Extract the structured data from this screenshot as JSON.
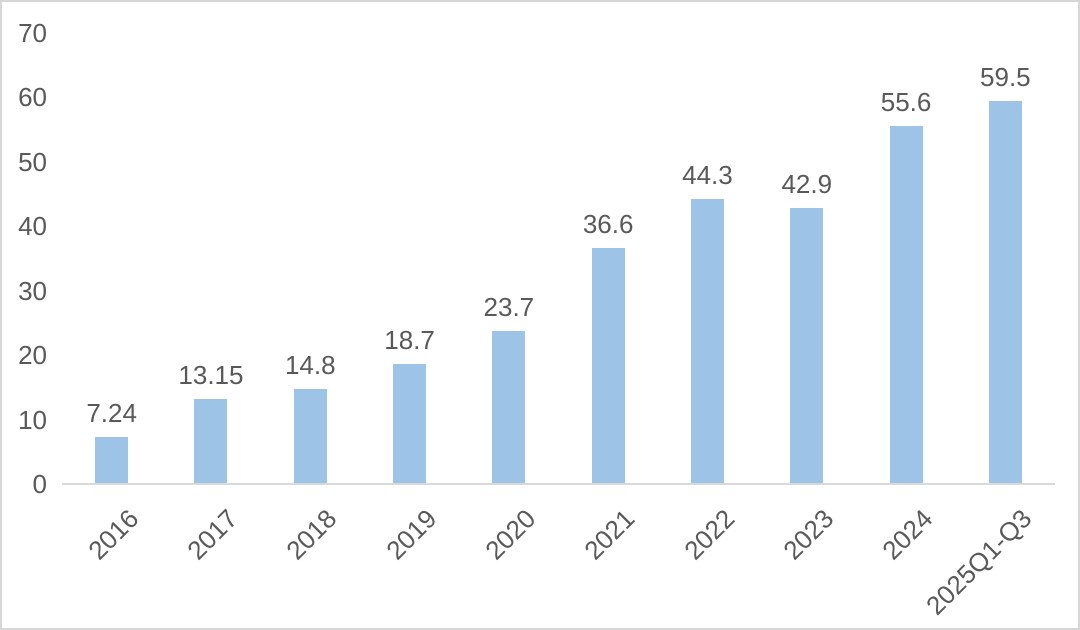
{
  "chart_data": {
    "type": "bar",
    "title": "",
    "xlabel": "",
    "ylabel": "",
    "categories": [
      "2016",
      "2017",
      "2018",
      "2019",
      "2020",
      "2021",
      "2022",
      "2023",
      "2024",
      "2025Q1-Q3"
    ],
    "values": [
      7.24,
      13.15,
      14.8,
      18.7,
      23.7,
      36.6,
      44.3,
      42.9,
      55.6,
      59.5
    ],
    "value_labels": [
      "7.24",
      "13.15",
      "14.8",
      "18.7",
      "23.7",
      "36.6",
      "44.3",
      "42.9",
      "55.6",
      "59.5"
    ],
    "yticks": [
      0,
      10,
      20,
      30,
      40,
      50,
      60,
      70
    ],
    "ylim": [
      0,
      70
    ],
    "grid": false,
    "legend": "none",
    "bar_color": "#9DC3E6",
    "axis_line_color": "#D9D9D9",
    "text_color": "#595959"
  }
}
